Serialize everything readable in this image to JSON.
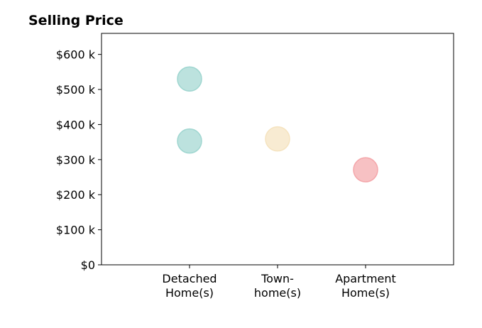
{
  "chart_data": {
    "type": "scatter",
    "title": "Selling Price",
    "xlabel": "",
    "ylabel": "",
    "categories": [
      [
        "Detached",
        "Home(s)"
      ],
      [
        "Town-",
        "home(s)"
      ],
      [
        "Apartment",
        "Home(s)"
      ]
    ],
    "x_range": [
      0,
      4
    ],
    "ylim": [
      0,
      660
    ],
    "y_ticks": [
      {
        "value": 0,
        "label": "$0"
      },
      {
        "value": 100,
        "label": "$100 k"
      },
      {
        "value": 200,
        "label": "$200 k"
      },
      {
        "value": 300,
        "label": "$300 k"
      },
      {
        "value": 400,
        "label": "$400 k"
      },
      {
        "value": 500,
        "label": "$500 k"
      },
      {
        "value": 600,
        "label": "$600 k"
      }
    ],
    "grid": false,
    "points": [
      {
        "category": 1,
        "y": 530,
        "color": "#9fd6d0"
      },
      {
        "category": 1,
        "y": 353,
        "color": "#9fd6d0"
      },
      {
        "category": 2,
        "y": 359,
        "color": "#f5e3bf"
      },
      {
        "category": 3,
        "y": 271,
        "color": "#f4a6aa"
      }
    ]
  }
}
